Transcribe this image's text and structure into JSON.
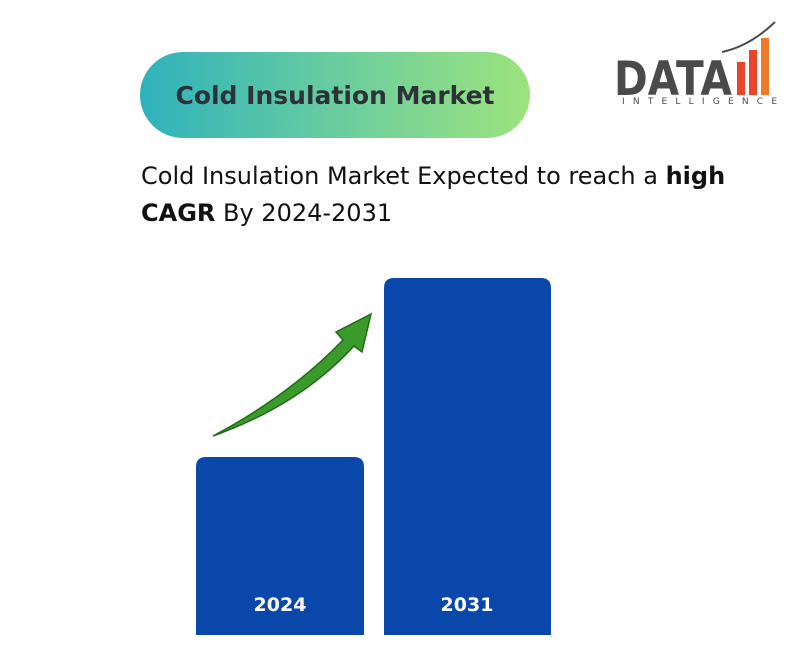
{
  "header": {
    "title": "Cold Insulation Market",
    "logo": {
      "name": "DATA",
      "tagline": "INTELLIGENCE"
    }
  },
  "subtitle": {
    "parts": [
      "Cold Insulation Market Expected to reach a ",
      "high",
      " CAGR",
      " By 2024-2031"
    ]
  },
  "bars": [
    {
      "label": "2024"
    },
    {
      "label": "2031"
    }
  ]
}
